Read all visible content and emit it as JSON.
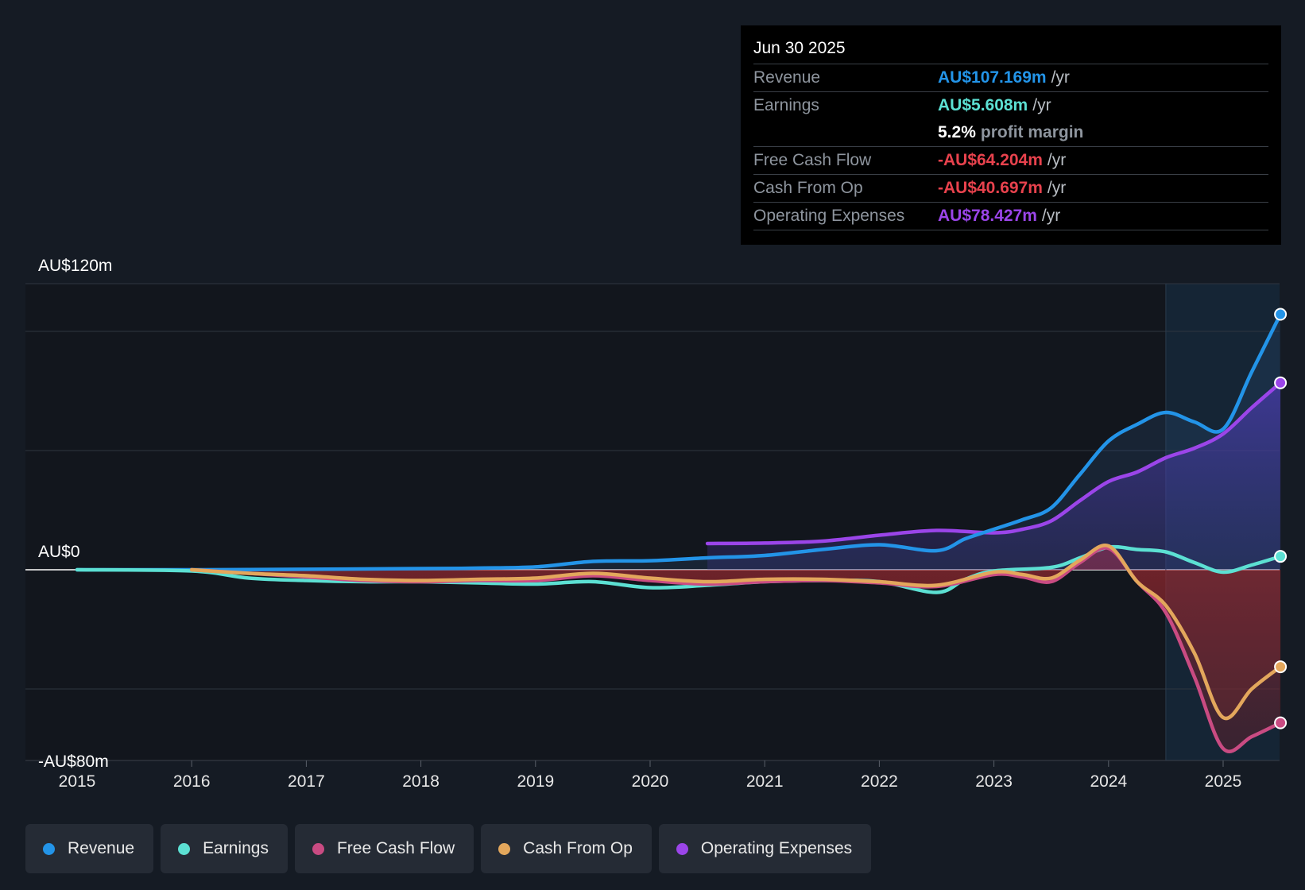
{
  "chart_data": {
    "type": "area",
    "y_unit": "AU$m",
    "ylim": [
      -80,
      120
    ],
    "xlim": [
      2014.55,
      2025.5
    ],
    "y_tick_labels": [
      {
        "value": 120,
        "label": "AU$120m"
      },
      {
        "value": 0,
        "label": "AU$0"
      },
      {
        "value": -80,
        "label": "-AU$80m"
      }
    ],
    "gridlines": [
      120,
      100,
      50,
      0,
      -50
    ],
    "x_ticks": [
      2015,
      2016,
      2017,
      2018,
      2019,
      2020,
      2021,
      2022,
      2023,
      2024,
      2025
    ],
    "x_tick_labels": [
      "2015",
      "2016",
      "2017",
      "2018",
      "2019",
      "2020",
      "2021",
      "2022",
      "2023",
      "2024",
      "2025"
    ],
    "highlight_start": 2024.5,
    "legend_position": "bottom-left",
    "series": [
      {
        "name": "Revenue",
        "color": "#2394e8",
        "points": [
          [
            2015.0,
            0
          ],
          [
            2016.0,
            0
          ],
          [
            2017.0,
            0.2
          ],
          [
            2018.0,
            0.5
          ],
          [
            2018.5,
            0.7
          ],
          [
            2019.0,
            1.2
          ],
          [
            2019.5,
            3.5
          ],
          [
            2020.0,
            3.8
          ],
          [
            2020.5,
            5
          ],
          [
            2021.0,
            6
          ],
          [
            2021.5,
            8.5
          ],
          [
            2022.0,
            10.5
          ],
          [
            2022.5,
            8
          ],
          [
            2022.75,
            13
          ],
          [
            2023.0,
            17
          ],
          [
            2023.25,
            21
          ],
          [
            2023.5,
            26
          ],
          [
            2023.75,
            40
          ],
          [
            2024.0,
            54
          ],
          [
            2024.25,
            61
          ],
          [
            2024.5,
            66
          ],
          [
            2024.75,
            62
          ],
          [
            2025.0,
            59
          ],
          [
            2025.25,
            83
          ],
          [
            2025.5,
            107.169
          ]
        ]
      },
      {
        "name": "Earnings",
        "color": "#5ce0d3",
        "points": [
          [
            2015.0,
            0
          ],
          [
            2016.0,
            -0.5
          ],
          [
            2016.5,
            -3.5
          ],
          [
            2017.0,
            -4.5
          ],
          [
            2017.5,
            -5
          ],
          [
            2018.0,
            -5
          ],
          [
            2018.5,
            -5.5
          ],
          [
            2019.0,
            -6
          ],
          [
            2019.5,
            -5
          ],
          [
            2020.0,
            -7.5
          ],
          [
            2020.5,
            -6.5
          ],
          [
            2021.0,
            -5
          ],
          [
            2021.5,
            -4.5
          ],
          [
            2022.0,
            -5
          ],
          [
            2022.5,
            -9.5
          ],
          [
            2022.75,
            -4
          ],
          [
            2023.0,
            -0.5
          ],
          [
            2023.5,
            1
          ],
          [
            2023.75,
            5
          ],
          [
            2024.0,
            9.5
          ],
          [
            2024.25,
            8.5
          ],
          [
            2024.5,
            7.5
          ],
          [
            2024.75,
            3
          ],
          [
            2025.0,
            -1
          ],
          [
            2025.25,
            2
          ],
          [
            2025.5,
            5.608
          ]
        ]
      },
      {
        "name": "Free Cash Flow",
        "color": "#c94b82",
        "points": [
          [
            2016.0,
            0
          ],
          [
            2016.5,
            -1.5
          ],
          [
            2017.0,
            -3
          ],
          [
            2017.5,
            -4.5
          ],
          [
            2018.0,
            -5
          ],
          [
            2018.5,
            -4.5
          ],
          [
            2019.0,
            -4.5
          ],
          [
            2019.5,
            -2.5
          ],
          [
            2020.0,
            -4.5
          ],
          [
            2020.5,
            -6
          ],
          [
            2021.0,
            -5
          ],
          [
            2021.5,
            -4.5
          ],
          [
            2022.0,
            -5.5
          ],
          [
            2022.5,
            -7
          ],
          [
            2023.0,
            -2
          ],
          [
            2023.25,
            -3
          ],
          [
            2023.5,
            -5
          ],
          [
            2023.75,
            3
          ],
          [
            2024.0,
            9
          ],
          [
            2024.25,
            -5
          ],
          [
            2024.5,
            -18
          ],
          [
            2024.75,
            -45
          ],
          [
            2025.0,
            -75
          ],
          [
            2025.25,
            -70
          ],
          [
            2025.5,
            -64.204
          ]
        ]
      },
      {
        "name": "Cash From Op",
        "color": "#e3a75c",
        "points": [
          [
            2016.0,
            0
          ],
          [
            2016.5,
            -1.5
          ],
          [
            2017.0,
            -2.5
          ],
          [
            2017.5,
            -4
          ],
          [
            2018.0,
            -4.5
          ],
          [
            2018.5,
            -4
          ],
          [
            2019.0,
            -3.5
          ],
          [
            2019.5,
            -1.5
          ],
          [
            2020.0,
            -3.5
          ],
          [
            2020.5,
            -5
          ],
          [
            2021.0,
            -4
          ],
          [
            2021.5,
            -4
          ],
          [
            2022.0,
            -5
          ],
          [
            2022.5,
            -6.5
          ],
          [
            2023.0,
            -1
          ],
          [
            2023.25,
            -2
          ],
          [
            2023.5,
            -3.5
          ],
          [
            2023.75,
            4
          ],
          [
            2024.0,
            10
          ],
          [
            2024.25,
            -5
          ],
          [
            2024.5,
            -15
          ],
          [
            2024.75,
            -35
          ],
          [
            2025.0,
            -62
          ],
          [
            2025.25,
            -50
          ],
          [
            2025.5,
            -40.697
          ]
        ]
      },
      {
        "name": "Operating Expenses",
        "color": "#9b45e9",
        "points": [
          [
            2020.5,
            11
          ],
          [
            2021.0,
            11.2
          ],
          [
            2021.5,
            12
          ],
          [
            2022.0,
            14.5
          ],
          [
            2022.5,
            16.5
          ],
          [
            2023.0,
            15.5
          ],
          [
            2023.25,
            17
          ],
          [
            2023.5,
            20.5
          ],
          [
            2023.75,
            29
          ],
          [
            2024.0,
            37
          ],
          [
            2024.25,
            41
          ],
          [
            2024.5,
            47
          ],
          [
            2024.75,
            51
          ],
          [
            2025.0,
            57
          ],
          [
            2025.25,
            68
          ],
          [
            2025.5,
            78.427
          ]
        ]
      }
    ]
  },
  "tooltip": {
    "date": "Jun 30 2025",
    "revenue": {
      "label": "Revenue",
      "value": "AU$107.169m",
      "unit": "/yr",
      "color": "#2394e8"
    },
    "earnings": {
      "label": "Earnings",
      "value": "AU$5.608m",
      "unit": "/yr",
      "color": "#5ce0d3"
    },
    "profit_margin": {
      "value": "5.2%",
      "text": "profit margin"
    },
    "free_cash_flow": {
      "label": "Free Cash Flow",
      "value": "-AU$64.204m",
      "unit": "/yr",
      "color": "#e8424d"
    },
    "cash_from_op": {
      "label": "Cash From Op",
      "value": "-AU$40.697m",
      "unit": "/yr",
      "color": "#e8424d"
    },
    "operating_expenses": {
      "label": "Operating Expenses",
      "value": "AU$78.427m",
      "unit": "/yr",
      "color": "#9b45e9"
    }
  },
  "legend": [
    {
      "label": "Revenue",
      "color": "#2394e8"
    },
    {
      "label": "Earnings",
      "color": "#5ce0d3"
    },
    {
      "label": "Free Cash Flow",
      "color": "#c94b82"
    },
    {
      "label": "Cash From Op",
      "color": "#e3a75c"
    },
    {
      "label": "Operating Expenses",
      "color": "#9b45e9"
    }
  ]
}
